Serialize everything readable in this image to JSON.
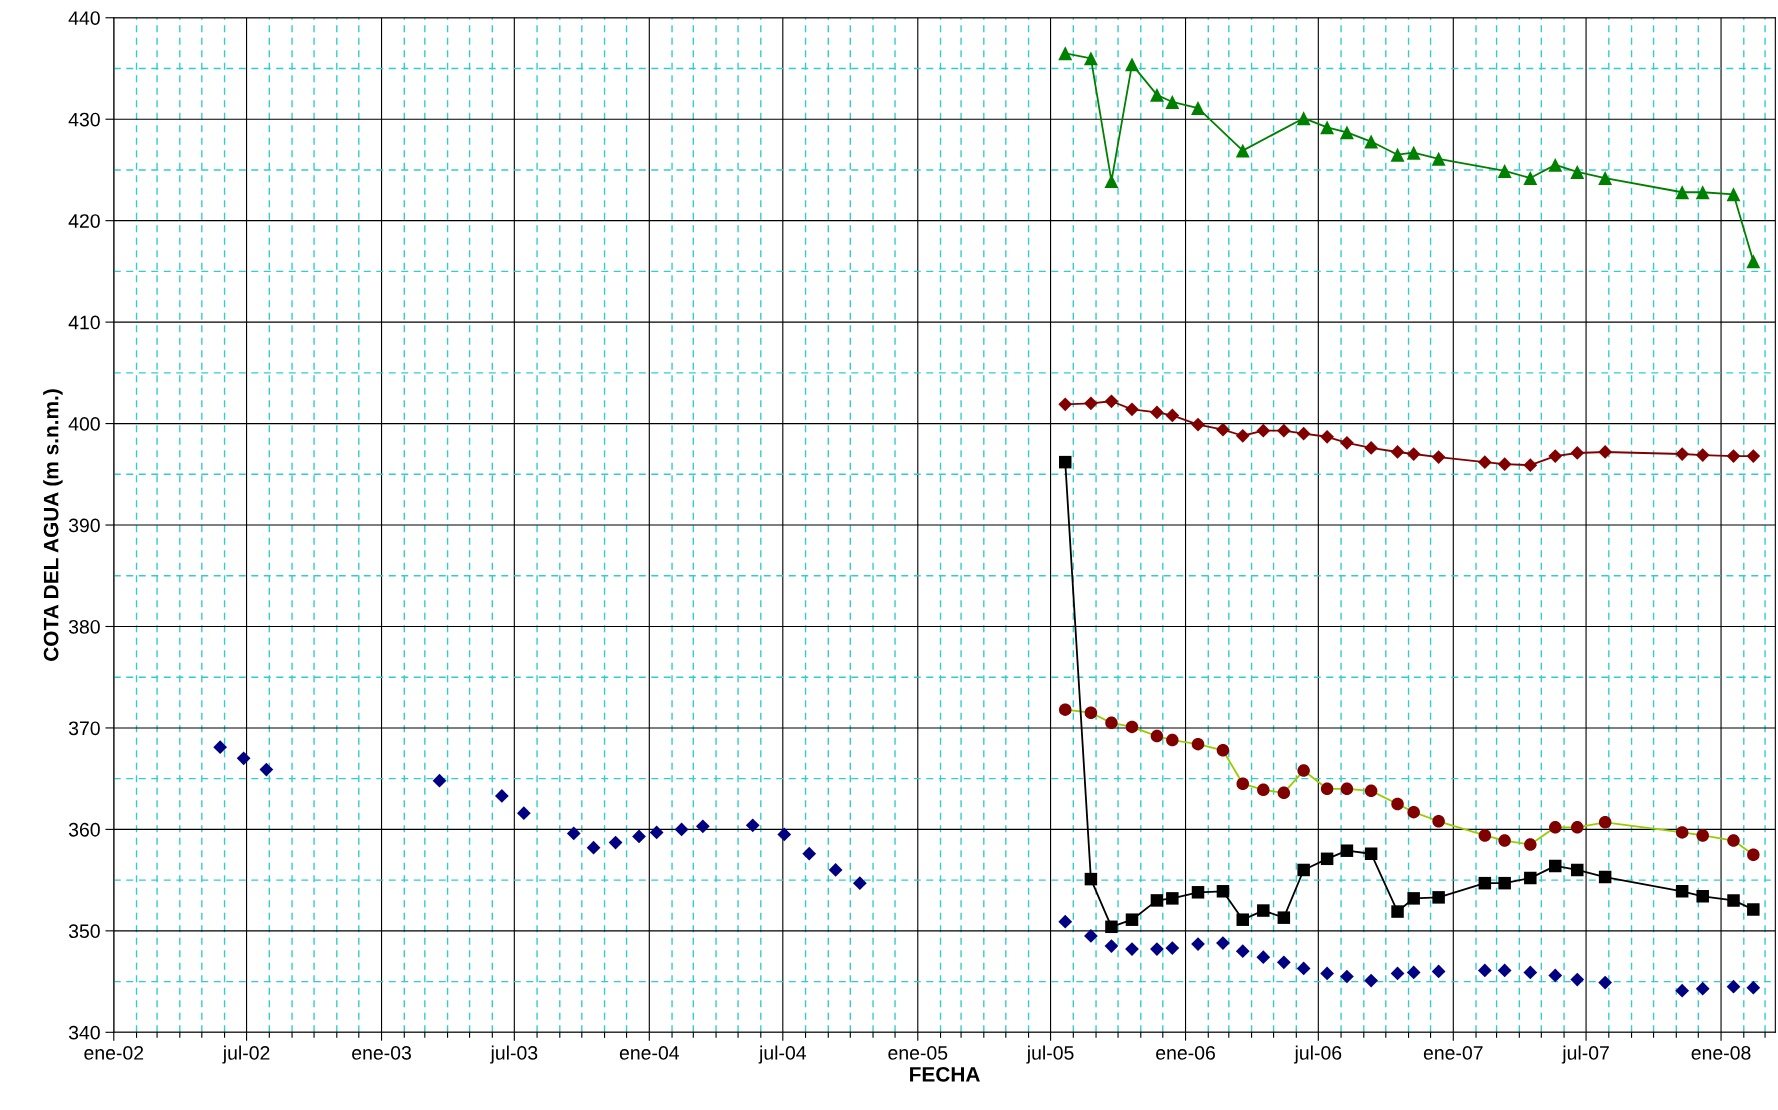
{
  "chart_data": {
    "type": "line",
    "xlabel": "FECHA",
    "ylabel": "COTA DEL AGUA (m s.n.m.)",
    "xlim": [
      "2002-01-01",
      "2008-03-15"
    ],
    "ylim": [
      340,
      440
    ],
    "yticks": [
      340,
      {
        "value": 345,
        "label": null
      },
      350,
      {
        "value": 355,
        "label": null
      },
      360,
      {
        "value": 365,
        "label": null
      },
      370,
      {
        "value": 375,
        "label": null
      },
      380,
      {
        "value": 385,
        "label": null
      },
      390,
      {
        "value": 395,
        "label": null
      },
      400,
      {
        "value": 405,
        "label": null
      },
      410,
      {
        "value": 415,
        "label": null
      },
      420,
      {
        "value": 425,
        "label": null
      },
      430,
      {
        "value": 435,
        "label": null
      },
      440
    ],
    "xticks": [
      {
        "value": "2002-01-01",
        "label": "ene-02"
      },
      {
        "value": "2002-02-01",
        "label": null
      },
      {
        "value": "2002-03-01",
        "label": null
      },
      {
        "value": "2002-04-01",
        "label": null
      },
      {
        "value": "2002-05-01",
        "label": null
      },
      {
        "value": "2002-06-01",
        "label": null
      },
      {
        "value": "2002-07-01",
        "label": "jul-02"
      },
      {
        "value": "2002-08-01",
        "label": null
      },
      {
        "value": "2002-09-01",
        "label": null
      },
      {
        "value": "2002-10-01",
        "label": null
      },
      {
        "value": "2002-11-01",
        "label": null
      },
      {
        "value": "2002-12-01",
        "label": null
      },
      {
        "value": "2003-01-01",
        "label": "ene-03"
      },
      {
        "value": "2003-02-01",
        "label": null
      },
      {
        "value": "2003-03-01",
        "label": null
      },
      {
        "value": "2003-04-01",
        "label": null
      },
      {
        "value": "2003-05-01",
        "label": null
      },
      {
        "value": "2003-06-01",
        "label": null
      },
      {
        "value": "2003-07-01",
        "label": "jul-03"
      },
      {
        "value": "2003-08-01",
        "label": null
      },
      {
        "value": "2003-09-01",
        "label": null
      },
      {
        "value": "2003-10-01",
        "label": null
      },
      {
        "value": "2003-11-01",
        "label": null
      },
      {
        "value": "2003-12-01",
        "label": null
      },
      {
        "value": "2004-01-01",
        "label": "ene-04"
      },
      {
        "value": "2004-02-01",
        "label": null
      },
      {
        "value": "2004-03-01",
        "label": null
      },
      {
        "value": "2004-04-01",
        "label": null
      },
      {
        "value": "2004-05-01",
        "label": null
      },
      {
        "value": "2004-06-01",
        "label": null
      },
      {
        "value": "2004-07-01",
        "label": "jul-04"
      },
      {
        "value": "2004-08-01",
        "label": null
      },
      {
        "value": "2004-09-01",
        "label": null
      },
      {
        "value": "2004-10-01",
        "label": null
      },
      {
        "value": "2004-11-01",
        "label": null
      },
      {
        "value": "2004-12-01",
        "label": null
      },
      {
        "value": "2005-01-01",
        "label": "ene-05"
      },
      {
        "value": "2005-02-01",
        "label": null
      },
      {
        "value": "2005-03-01",
        "label": null
      },
      {
        "value": "2005-04-01",
        "label": null
      },
      {
        "value": "2005-05-01",
        "label": null
      },
      {
        "value": "2005-06-01",
        "label": null
      },
      {
        "value": "2005-07-01",
        "label": "jul-05"
      },
      {
        "value": "2005-08-01",
        "label": null
      },
      {
        "value": "2005-09-01",
        "label": null
      },
      {
        "value": "2005-10-01",
        "label": null
      },
      {
        "value": "2005-11-01",
        "label": null
      },
      {
        "value": "2005-12-01",
        "label": null
      },
      {
        "value": "2006-01-01",
        "label": "ene-06"
      },
      {
        "value": "2006-02-01",
        "label": null
      },
      {
        "value": "2006-03-01",
        "label": null
      },
      {
        "value": "2006-04-01",
        "label": null
      },
      {
        "value": "2006-05-01",
        "label": null
      },
      {
        "value": "2006-06-01",
        "label": null
      },
      {
        "value": "2006-07-01",
        "label": "jul-06"
      },
      {
        "value": "2006-08-01",
        "label": null
      },
      {
        "value": "2006-09-01",
        "label": null
      },
      {
        "value": "2006-10-01",
        "label": null
      },
      {
        "value": "2006-11-01",
        "label": null
      },
      {
        "value": "2006-12-01",
        "label": null
      },
      {
        "value": "2007-01-01",
        "label": "ene-07"
      },
      {
        "value": "2007-02-01",
        "label": null
      },
      {
        "value": "2007-03-01",
        "label": null
      },
      {
        "value": "2007-04-01",
        "label": null
      },
      {
        "value": "2007-05-01",
        "label": null
      },
      {
        "value": "2007-06-01",
        "label": null
      },
      {
        "value": "2007-07-01",
        "label": "jul-07"
      },
      {
        "value": "2007-08-01",
        "label": null
      },
      {
        "value": "2007-09-01",
        "label": null
      },
      {
        "value": "2007-10-01",
        "label": null
      },
      {
        "value": "2007-11-01",
        "label": null
      },
      {
        "value": "2007-12-01",
        "label": null
      },
      {
        "value": "2008-01-01",
        "label": "ene-08"
      },
      {
        "value": "2008-02-01",
        "label": null
      },
      {
        "value": "2008-03-01",
        "label": null
      }
    ],
    "grid": true,
    "legend": false,
    "x": [
      "2005-07-21",
      "2005-08-25",
      "2005-09-22",
      "2005-10-20",
      "2005-11-23",
      "2005-12-14",
      "2006-01-18",
      "2006-02-21",
      "2006-03-20",
      "2006-04-17",
      "2006-05-15",
      "2006-06-11",
      "2006-07-13",
      "2006-08-09",
      "2006-09-11",
      "2006-10-17",
      "2006-11-08",
      "2006-12-12",
      "2007-02-13",
      "2007-03-12",
      "2007-04-16",
      "2007-05-20",
      "2007-06-19",
      "2007-07-27",
      "2007-11-09",
      "2007-12-07",
      "2008-01-18",
      "2008-02-14"
    ],
    "series": [
      {
        "marker": "triangle",
        "line_style": "solid",
        "color": "#008000",
        "x": [
          "2005-07-21",
          "2005-08-25",
          "2005-09-22",
          "2005-10-20",
          "2005-11-23",
          "2005-12-14",
          "2006-01-18",
          "2006-03-20",
          "2006-06-11",
          "2006-07-13",
          "2006-08-09",
          "2006-09-11",
          "2006-10-17",
          "2006-11-08",
          "2006-12-12",
          "2007-03-12",
          "2007-04-16",
          "2007-05-20",
          "2007-06-19",
          "2007-07-27",
          "2007-11-09",
          "2007-12-07",
          "2008-01-18",
          "2008-02-14"
        ],
        "values": [
          436.5,
          436.0,
          423.9,
          435.4,
          432.4,
          431.7,
          431.1,
          426.9,
          430.1,
          429.2,
          428.7,
          427.8,
          426.5,
          426.7,
          426.1,
          424.9,
          424.2,
          425.5,
          424.8,
          424.2,
          422.8,
          422.8,
          422.6,
          416.0
        ]
      },
      {
        "marker": "diamond",
        "line_style": "solid",
        "color": "#800000",
        "values": [
          401.9,
          402.0,
          402.2,
          401.4,
          401.1,
          400.8,
          399.9,
          399.4,
          398.8,
          399.3,
          399.3,
          399.0,
          398.7,
          398.1,
          397.6,
          397.2,
          397.0,
          396.7,
          396.2,
          396.0,
          395.9,
          396.8,
          397.1,
          397.2,
          397.0,
          396.9,
          396.8,
          396.8
        ]
      },
      {
        "marker": "circle",
        "line_style": "solid",
        "color": "#99cc00",
        "colors": [
          "#800000",
          "#800000",
          "#800000",
          "#800000",
          "#800000",
          "#800000",
          "#800000",
          "#800000",
          "#800000",
          "#800000",
          "#800000",
          "#800000",
          "#800000",
          "#800000",
          "#800000",
          "#800000",
          "#800000",
          "#800000",
          "#800000",
          "#800000",
          "#800000",
          "#800000",
          "#800000",
          "#800000",
          "#800000",
          "#800000",
          "#800000",
          "#800000"
        ],
        "values": [
          371.8,
          371.5,
          370.5,
          370.1,
          369.2,
          368.8,
          368.4,
          367.8,
          364.5,
          363.9,
          363.6,
          365.8,
          364.0,
          364.0,
          363.8,
          362.5,
          361.7,
          360.8,
          359.4,
          358.9,
          358.5,
          360.2,
          360.2,
          360.7,
          359.7,
          359.4,
          358.9,
          357.5
        ]
      },
      {
        "marker": "square",
        "line_style": "solid",
        "color": "#000000",
        "values": [
          396.2,
          355.1,
          350.4,
          351.1,
          353.0,
          353.2,
          353.8,
          353.9,
          351.1,
          352.0,
          351.3,
          356.0,
          357.1,
          357.9,
          357.6,
          351.9,
          353.2,
          353.3,
          354.7,
          354.7,
          355.2,
          356.4,
          356.0,
          355.3,
          353.9,
          353.4,
          353.0,
          352.1
        ]
      },
      {
        "type": "scatter",
        "marker": "diamond",
        "color": "#000080",
        "x": [
          "2002-05-26",
          "2002-06-27",
          "2002-07-28",
          "2003-03-21",
          "2003-06-14",
          "2003-07-14",
          "2003-09-20",
          "2003-10-17",
          "2003-11-16",
          "2003-12-18",
          "2004-01-11",
          "2004-02-14",
          "2004-03-14",
          "2004-05-21",
          "2004-07-03",
          "2004-08-06",
          "2004-09-11",
          "2004-10-14",
          "2005-07-21",
          "2005-08-25",
          "2005-09-22",
          "2005-10-20",
          "2005-11-23",
          "2005-12-14",
          "2006-01-18",
          "2006-02-21",
          "2006-03-20",
          "2006-04-17",
          "2006-05-15",
          "2006-06-11",
          "2006-07-13",
          "2006-08-09",
          "2006-09-11",
          "2006-10-17",
          "2006-11-08",
          "2006-12-12",
          "2007-02-13",
          "2007-03-12",
          "2007-04-16",
          "2007-05-20",
          "2007-06-19",
          "2007-07-27",
          "2007-11-09",
          "2007-12-07",
          "2008-01-18",
          "2008-02-14"
        ],
        "values": [
          368.1,
          367.0,
          365.9,
          364.8,
          363.3,
          361.6,
          359.6,
          358.2,
          358.7,
          359.3,
          359.7,
          360.0,
          360.3,
          360.4,
          359.5,
          357.6,
          356.0,
          354.7,
          350.9,
          349.5,
          348.5,
          348.2,
          348.2,
          348.3,
          348.7,
          348.8,
          348.0,
          347.4,
          346.9,
          346.3,
          345.8,
          345.5,
          345.1,
          345.8,
          345.9,
          346.0,
          346.1,
          346.1,
          345.9,
          345.6,
          345.2,
          344.9,
          344.1,
          344.3,
          344.5,
          344.4
        ]
      }
    ]
  }
}
